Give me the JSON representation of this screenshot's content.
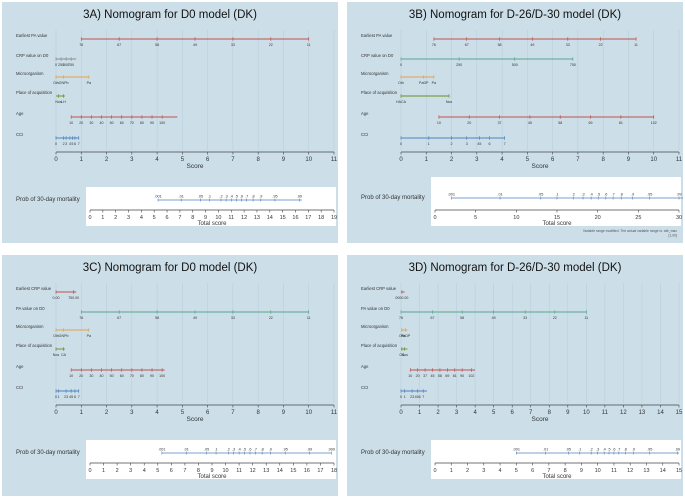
{
  "chart_data": [
    {
      "type": "nomogram",
      "title": "3A) Nomogram for D0 model (DK)",
      "rows": [
        {
          "label": "Earliest PA value",
          "color": "#c0504d",
          "lo": 1,
          "hi": 10,
          "ticks": [
            {
              "p": 1,
              "t": "76"
            },
            {
              "p": 2.5,
              "t": "67"
            },
            {
              "p": 4,
              "t": "58"
            },
            {
              "p": 5.5,
              "t": "49"
            },
            {
              "p": 7,
              "t": "33"
            },
            {
              "p": 8.5,
              "t": "22"
            },
            {
              "p": 10,
              "t": "11"
            }
          ]
        },
        {
          "label": "CRP value on D0",
          "color": "#8c8c8c",
          "lo": 0,
          "hi": 0.8,
          "ticks": [
            {
              "p": 0,
              "t": "0"
            },
            {
              "p": 0.2,
              "t": "250"
            },
            {
              "p": 0.4,
              "t": "500"
            },
            {
              "p": 0.6,
              "t": "750"
            }
          ]
        },
        {
          "label": "Microorganism",
          "color": "#e3a04a",
          "lo": 0,
          "hi": 1.3,
          "ticks": [
            {
              "p": 0,
              "t": "Oth"
            },
            {
              "p": 0.3,
              "t": "GNPb"
            },
            {
              "p": 1.3,
              "t": "Pa"
            }
          ]
        },
        {
          "label": "Place of acquisition",
          "color": "#6b8e23",
          "lo": 0,
          "hi": 0.35,
          "ticks": [
            {
              "p": 0.3,
              "t": "LH"
            },
            {
              "p": 0.1,
              "t": "Nos"
            }
          ]
        },
        {
          "label": "Age",
          "color": "#c0504d",
          "lo": 0.6,
          "hi": 4.8,
          "ticks": [
            {
              "p": 0.6,
              "t": "10"
            },
            {
              "p": 1.0,
              "t": "20"
            },
            {
              "p": 1.4,
              "t": "30"
            },
            {
              "p": 1.8,
              "t": "40"
            },
            {
              "p": 2.2,
              "t": "50"
            },
            {
              "p": 2.6,
              "t": "60"
            },
            {
              "p": 3.0,
              "t": "70"
            },
            {
              "p": 3.4,
              "t": "80"
            },
            {
              "p": 3.8,
              "t": "90"
            },
            {
              "p": 4.2,
              "t": "100"
            }
          ]
        },
        {
          "label": "CCI",
          "color": "#4f81bd",
          "lo": 0,
          "hi": 0.9,
          "ticks": [
            {
              "p": 0,
              "t": "0"
            },
            {
              "p": 0.3,
              "t": "2"
            },
            {
              "p": 0.4,
              "t": "3"
            },
            {
              "p": 0.55,
              "t": "4"
            },
            {
              "p": 0.65,
              "t": "5"
            },
            {
              "p": 0.75,
              "t": "6"
            },
            {
              "p": 0.9,
              "t": "7"
            }
          ]
        }
      ],
      "score_axis": {
        "label": "Score",
        "min": 0,
        "max": 11,
        "step": 1
      },
      "prob": {
        "label": "Prob of 30-day mortality",
        "lo": 5.3,
        "hi": 16.5,
        "ticks": [
          {
            "p": 5.3,
            "t": ".001"
          },
          {
            "p": 7.1,
            "t": ".01"
          },
          {
            "p": 8.6,
            "t": ".05"
          },
          {
            "p": 9.3,
            "t": ".1"
          },
          {
            "p": 10.2,
            "t": ".2"
          },
          {
            "p": 10.6,
            "t": ".3"
          },
          {
            "p": 11.0,
            "t": ".4"
          },
          {
            "p": 11.4,
            "t": ".5"
          },
          {
            "p": 11.8,
            "t": ".6"
          },
          {
            "p": 12.2,
            "t": ".7"
          },
          {
            "p": 12.7,
            "t": ".8"
          },
          {
            "p": 13.3,
            "t": ".9"
          },
          {
            "p": 14.4,
            "t": ".95"
          },
          {
            "p": 16.3,
            "t": ".99"
          }
        ]
      },
      "total_axis": {
        "label": "Total score",
        "min": 0,
        "max": 19,
        "step": 1
      },
      "note": ""
    },
    {
      "type": "nomogram",
      "title": "3B) Nomogram for D-26/D-30 model (DK)",
      "rows": [
        {
          "label": "Earliest PA value",
          "color": "#c0504d",
          "lo": 1.3,
          "hi": 9.3,
          "ticks": [
            {
              "p": 1.3,
              "t": "76"
            },
            {
              "p": 2.6,
              "t": "67"
            },
            {
              "p": 3.9,
              "t": "58"
            },
            {
              "p": 5.2,
              "t": "49"
            },
            {
              "p": 6.6,
              "t": "33"
            },
            {
              "p": 7.9,
              "t": "22"
            },
            {
              "p": 9.3,
              "t": "11"
            }
          ]
        },
        {
          "label": "CRP value on D0",
          "color": "#5aa58e",
          "lo": 0,
          "hi": 6.8,
          "ticks": [
            {
              "p": 0,
              "t": "0"
            },
            {
              "p": 2.3,
              "t": "250"
            },
            {
              "p": 4.5,
              "t": "500"
            },
            {
              "p": 6.8,
              "t": "750"
            }
          ]
        },
        {
          "label": "Microorganism",
          "color": "#e3a04a",
          "lo": 0,
          "hi": 1.3,
          "ticks": [
            {
              "p": 0,
              "t": "Oth"
            },
            {
              "p": 0.9,
              "t": "PaDP"
            },
            {
              "p": 1.3,
              "t": "Pa"
            }
          ]
        },
        {
          "label": "Place of acquisition",
          "color": "#6b8e23",
          "lo": 0,
          "hi": 1.9,
          "ticks": [
            {
              "p": 0,
              "t": "HACA"
            },
            {
              "p": 1.9,
              "t": "Nos"
            }
          ]
        },
        {
          "label": "Age",
          "color": "#c0504d",
          "lo": 1.5,
          "hi": 10.0,
          "ticks": [
            {
              "p": 1.5,
              "t": "10"
            },
            {
              "p": 2.7,
              "t": "20"
            },
            {
              "p": 3.9,
              "t": "37"
            },
            {
              "p": 5.1,
              "t": "45"
            },
            {
              "p": 6.3,
              "t": "58"
            },
            {
              "p": 7.5,
              "t": "69"
            },
            {
              "p": 8.7,
              "t": "81"
            },
            {
              "p": 10.0,
              "t": "102"
            }
          ]
        },
        {
          "label": "CCI",
          "color": "#4f81bd",
          "lo": 0,
          "hi": 4.1,
          "ticks": [
            {
              "p": 0,
              "t": "0"
            },
            {
              "p": 1.1,
              "t": "1"
            },
            {
              "p": 2.0,
              "t": "2"
            },
            {
              "p": 2.6,
              "t": "3"
            },
            {
              "p": 3.1,
              "t": "45"
            },
            {
              "p": 3.5,
              "t": "6"
            },
            {
              "p": 4.1,
              "t": "7"
            }
          ]
        }
      ],
      "score_axis": {
        "label": "Score",
        "min": 0,
        "max": 11,
        "step": 1
      },
      "prob": {
        "label": "Prob of 30-day mortality",
        "lo": 2.0,
        "hi": 31.0,
        "ticks": [
          {
            "p": 2.0,
            "t": ".001"
          },
          {
            "p": 8.0,
            "t": ".01"
          },
          {
            "p": 13.0,
            "t": ".05"
          },
          {
            "p": 15.0,
            "t": ".1"
          },
          {
            "p": 17.0,
            "t": ".2"
          },
          {
            "p": 18.2,
            "t": ".3"
          },
          {
            "p": 19.2,
            "t": ".4"
          },
          {
            "p": 20.1,
            "t": ".5"
          },
          {
            "p": 21.0,
            "t": ".6"
          },
          {
            "p": 21.9,
            "t": ".7"
          },
          {
            "p": 22.9,
            "t": ".8"
          },
          {
            "p": 24.3,
            "t": ".9"
          },
          {
            "p": 26.4,
            "t": ".95"
          },
          {
            "p": 30.0,
            "t": ".99"
          }
        ]
      },
      "total_axis": {
        "label": "Total score",
        "min": 0,
        "max": 30,
        "step": 5
      },
      "note": "Variable range modified. The actual variable range is: attr_max; [1,00]"
    },
    {
      "type": "nomogram",
      "title": "3C) Nomogram for D0 model (DK)",
      "rows": [
        {
          "label": "Earliest CRP value",
          "color": "#c0504d",
          "lo": 0,
          "hi": 0.8,
          "ticks": [
            {
              "p": 0,
              "t": "0.00"
            },
            {
              "p": 0.7,
              "t": "750.00"
            }
          ]
        },
        {
          "label": "PA value on D0",
          "color": "#5aa58e",
          "lo": 1,
          "hi": 10,
          "ticks": [
            {
              "p": 1,
              "t": "76"
            },
            {
              "p": 2.5,
              "t": "67"
            },
            {
              "p": 4,
              "t": "58"
            },
            {
              "p": 5.5,
              "t": "49"
            },
            {
              "p": 7,
              "t": "33"
            },
            {
              "p": 8.5,
              "t": "22"
            },
            {
              "p": 10,
              "t": "11"
            }
          ]
        },
        {
          "label": "Microorganism",
          "color": "#e3a04a",
          "lo": 0,
          "hi": 1.3,
          "ticks": [
            {
              "p": 0,
              "t": "Oth"
            },
            {
              "p": 0.3,
              "t": "GNPb"
            },
            {
              "p": 1.3,
              "t": "Pa"
            }
          ]
        },
        {
          "label": "Place of acquisition",
          "color": "#6b8e23",
          "lo": 0,
          "hi": 0.35,
          "ticks": [
            {
              "p": 0,
              "t": "Nos"
            },
            {
              "p": 0.3,
              "t": "CA"
            }
          ]
        },
        {
          "label": "Age",
          "color": "#c0504d",
          "lo": 0.6,
          "hi": 4.3,
          "ticks": [
            {
              "p": 0.6,
              "t": "10"
            },
            {
              "p": 1.0,
              "t": "20"
            },
            {
              "p": 1.4,
              "t": "30"
            },
            {
              "p": 1.8,
              "t": "40"
            },
            {
              "p": 2.2,
              "t": "50"
            },
            {
              "p": 2.6,
              "t": "60"
            },
            {
              "p": 3.0,
              "t": "70"
            },
            {
              "p": 3.4,
              "t": "80"
            },
            {
              "p": 3.8,
              "t": "90"
            },
            {
              "p": 4.2,
              "t": "100"
            }
          ]
        },
        {
          "label": "CCI",
          "color": "#4f81bd",
          "lo": 0,
          "hi": 0.9,
          "ticks": [
            {
              "p": 0,
              "t": "0"
            },
            {
              "p": 0.1,
              "t": "1"
            },
            {
              "p": 0.4,
              "t": "23"
            },
            {
              "p": 0.6,
              "t": "45"
            },
            {
              "p": 0.75,
              "t": "6"
            },
            {
              "p": 0.9,
              "t": "7"
            }
          ]
        }
      ],
      "score_axis": {
        "label": "Score",
        "min": 0,
        "max": 11,
        "step": 1
      },
      "prob": {
        "label": "Prob of 30-day mortality",
        "lo": 5.3,
        "hi": 17.8,
        "ticks": [
          {
            "p": 5.3,
            "t": ".001"
          },
          {
            "p": 7.1,
            "t": ".01"
          },
          {
            "p": 8.6,
            "t": ".05"
          },
          {
            "p": 9.3,
            "t": ".1"
          },
          {
            "p": 10.2,
            "t": ".2"
          },
          {
            "p": 10.6,
            "t": ".3"
          },
          {
            "p": 11.0,
            "t": ".4"
          },
          {
            "p": 11.4,
            "t": ".5"
          },
          {
            "p": 11.8,
            "t": ".6"
          },
          {
            "p": 12.2,
            "t": ".7"
          },
          {
            "p": 12.7,
            "t": ".8"
          },
          {
            "p": 13.3,
            "t": ".9"
          },
          {
            "p": 14.4,
            "t": ".95"
          },
          {
            "p": 16.2,
            "t": ".99"
          },
          {
            "p": 17.8,
            "t": ".999"
          }
        ]
      },
      "total_axis": {
        "label": "Total score",
        "min": 0,
        "max": 18,
        "step": 1
      },
      "note": ""
    },
    {
      "type": "nomogram",
      "title": "3D) Nomogram for D-26/D-30 model (DK)",
      "rows": [
        {
          "label": "Earliest CRP value",
          "color": "#c0504d",
          "lo": 0,
          "hi": 0.2,
          "ticks": [
            {
              "p": 0.05,
              "t": "0000.00"
            }
          ]
        },
        {
          "label": "PA value on D0",
          "color": "#5aa58e",
          "lo": 0,
          "hi": 10,
          "ticks": [
            {
              "p": 0,
              "t": "76"
            },
            {
              "p": 1.7,
              "t": "67"
            },
            {
              "p": 3.3,
              "t": "58"
            },
            {
              "p": 5.0,
              "t": "49"
            },
            {
              "p": 6.7,
              "t": "33"
            },
            {
              "p": 8.3,
              "t": "22"
            },
            {
              "p": 10,
              "t": "11"
            }
          ]
        },
        {
          "label": "Microorganism",
          "color": "#e3a04a",
          "lo": 0,
          "hi": 0.35,
          "ticks": [
            {
              "p": 0.05,
              "t": "Oth"
            },
            {
              "p": 0.25,
              "t": "PaDP"
            }
          ]
        },
        {
          "label": "Place of acquisition",
          "color": "#6b8e23",
          "lo": 0,
          "hi": 0.35,
          "ticks": [
            {
              "p": 0.05,
              "t": "CA"
            },
            {
              "p": 0.2,
              "t": "Nos"
            }
          ]
        },
        {
          "label": "Age",
          "color": "#c0504d",
          "lo": 0.5,
          "hi": 4.0,
          "ticks": [
            {
              "p": 0.5,
              "t": "10"
            },
            {
              "p": 0.9,
              "t": "20"
            },
            {
              "p": 1.3,
              "t": "37"
            },
            {
              "p": 1.7,
              "t": "45"
            },
            {
              "p": 2.1,
              "t": "58"
            },
            {
              "p": 2.5,
              "t": "69"
            },
            {
              "p": 2.9,
              "t": "81"
            },
            {
              "p": 3.3,
              "t": "90"
            },
            {
              "p": 3.8,
              "t": "102"
            }
          ]
        },
        {
          "label": "CCI",
          "color": "#4f81bd",
          "lo": 0,
          "hi": 1.4,
          "ticks": [
            {
              "p": 0,
              "t": "0"
            },
            {
              "p": 0.2,
              "t": "1"
            },
            {
              "p": 0.6,
              "t": "23"
            },
            {
              "p": 0.9,
              "t": "456"
            },
            {
              "p": 1.2,
              "t": "7"
            }
          ]
        }
      ],
      "score_axis": {
        "label": "Score",
        "min": 0,
        "max": 15,
        "step": 1
      },
      "prob": {
        "label": "Prob of 30-day mortality",
        "lo": 5.0,
        "hi": 15.0,
        "ticks": [
          {
            "p": 5.0,
            "t": ".001"
          },
          {
            "p": 6.8,
            "t": ".01"
          },
          {
            "p": 8.2,
            "t": ".05"
          },
          {
            "p": 8.9,
            "t": ".1"
          },
          {
            "p": 9.6,
            "t": ".2"
          },
          {
            "p": 10.0,
            "t": ".3"
          },
          {
            "p": 10.4,
            "t": ".4"
          },
          {
            "p": 10.7,
            "t": ".5"
          },
          {
            "p": 11.0,
            "t": ".6"
          },
          {
            "p": 11.3,
            "t": ".7"
          },
          {
            "p": 11.7,
            "t": ".8"
          },
          {
            "p": 12.2,
            "t": ".9"
          },
          {
            "p": 13.2,
            "t": ".95"
          },
          {
            "p": 14.9,
            "t": ".99"
          }
        ]
      },
      "total_axis": {
        "label": "Total score",
        "min": 0,
        "max": 15,
        "step": 1
      },
      "note": ""
    }
  ]
}
